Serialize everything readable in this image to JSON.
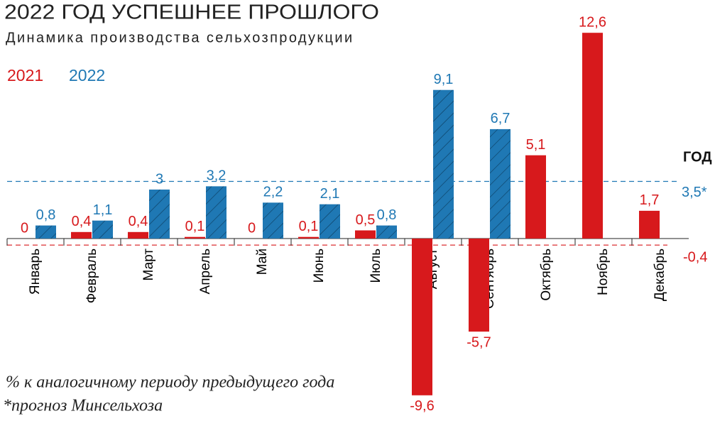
{
  "chart_data": {
    "type": "bar",
    "title": "2022 ГОД УСПЕШНЕЕ ПРОШЛОГО",
    "subtitle": "Динамика производства сельхозпродукции",
    "categories": [
      "Январь",
      "Февраль",
      "Март",
      "Апрель",
      "Май",
      "Июнь",
      "Июль",
      "Август",
      "Сентябрь",
      "Октябрь",
      "Ноябрь",
      "Декабрь"
    ],
    "series": [
      {
        "name": "2021",
        "color": "#d7191c",
        "values": [
          0,
          0.4,
          0.4,
          0.1,
          0,
          0.1,
          0.5,
          -9.6,
          -5.7,
          5.1,
          12.6,
          1.7
        ],
        "value_labels": [
          "0",
          "0,4",
          "0,4",
          "0,1",
          "0",
          "0,1",
          "0,5",
          "-9,6",
          "-5,7",
          "5,1",
          "12,6",
          "1,7"
        ]
      },
      {
        "name": "2022",
        "color": "#1f78b4",
        "values": [
          0.8,
          1.1,
          3,
          3.2,
          2.2,
          2.1,
          0.8,
          9.1,
          6.7,
          null,
          null,
          null
        ],
        "value_labels": [
          "0,8",
          "1,1",
          "3",
          "3,2",
          "2,2",
          "2,1",
          "0,8",
          "9,1",
          "6,7",
          null,
          null,
          null
        ]
      }
    ],
    "reference_lines": [
      {
        "value": 3.5,
        "label": "3,5*",
        "color": "#1f78b4"
      },
      {
        "value": -0.4,
        "label": "-0,4",
        "color": "#d7191c"
      }
    ],
    "annotations": [
      "ГОД"
    ],
    "notes": [
      "% к аналогичному периоду предыдущего года",
      "*прогноз Минсельхоза"
    ]
  }
}
